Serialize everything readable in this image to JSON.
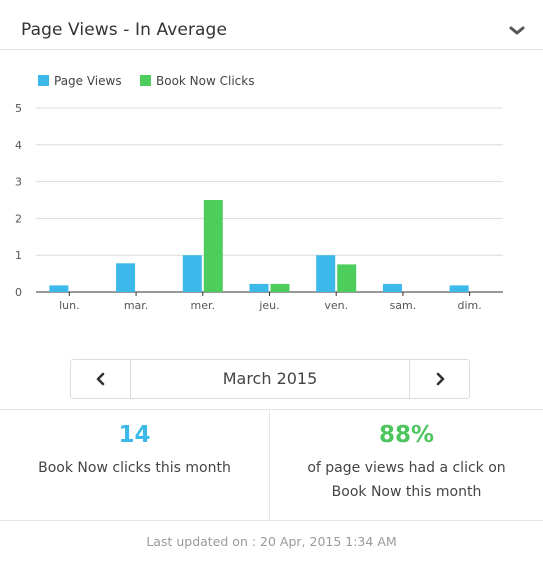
{
  "header": {
    "title": "Page Views - In Average"
  },
  "chart_data": {
    "type": "bar",
    "categories": [
      "lun.",
      "mar.",
      "mer.",
      "jeu.",
      "ven.",
      "sam.",
      "dim."
    ],
    "series": [
      {
        "name": "Page Views",
        "color": "#3db8ea",
        "values": [
          0.18,
          0.78,
          1.0,
          0.22,
          1.0,
          0.22,
          0.18
        ]
      },
      {
        "name": "Book Now Clicks",
        "color": "#4ccd5c",
        "values": [
          0,
          0,
          2.5,
          0.22,
          0.75,
          0,
          0
        ]
      }
    ],
    "yticks": [
      0,
      1,
      2,
      3,
      4,
      5
    ],
    "ylim": [
      0,
      5
    ],
    "grid": true,
    "legend": "top-left"
  },
  "month_nav": {
    "label": "March 2015",
    "prev_icon": "chevron-left-icon",
    "next_icon": "chevron-right-icon"
  },
  "stats": {
    "clicks": {
      "value": "14",
      "text": "Book Now clicks this month"
    },
    "ratio": {
      "value": "88%",
      "text": "of page views had a click on Book Now this month"
    }
  },
  "footer": {
    "updated": "Last updated on : 20 Apr, 2015 1:34 AM"
  }
}
